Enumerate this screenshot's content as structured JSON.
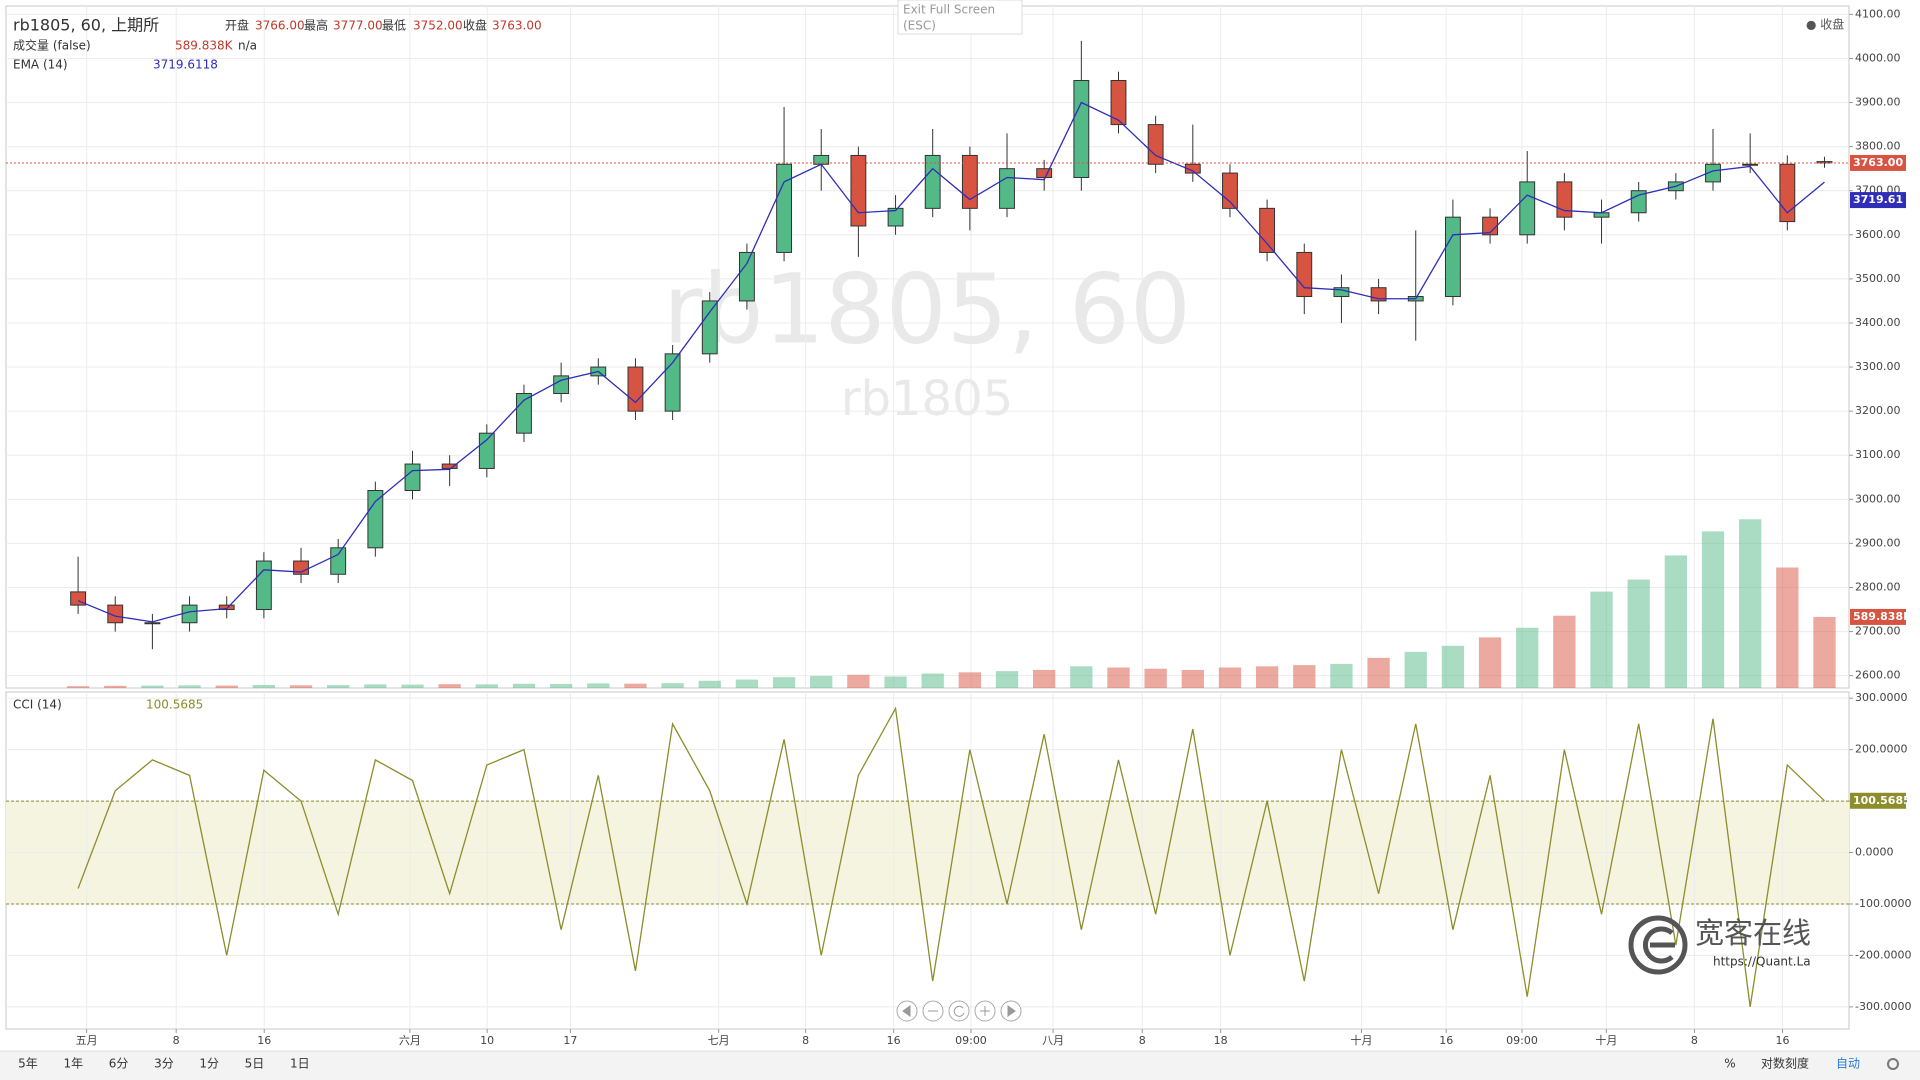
{
  "chart_data": [
    {
      "type": "candlestick",
      "title": "rb1805, 60, 上期所",
      "watermark": "rb1805, 60",
      "watermark_sub": "rb1805",
      "x": [
        0,
        1,
        2,
        3,
        4,
        5,
        6,
        7,
        8,
        9,
        10,
        11,
        12,
        13,
        14,
        15,
        16,
        17,
        18,
        19,
        20,
        21,
        22,
        23,
        24,
        25,
        26,
        27,
        28,
        29,
        30,
        31,
        32,
        33,
        34,
        35,
        36,
        37,
        38,
        39,
        40,
        41,
        42,
        43,
        44,
        45,
        46,
        47
      ],
      "xlim": [
        -1.94,
        47.66
      ],
      "open": [
        2790,
        2760,
        2720,
        2720,
        2760,
        2750,
        2860,
        2830,
        2890,
        3020,
        3080,
        3070,
        3150,
        3240,
        3280,
        3300,
        3200,
        3330,
        3450,
        3560,
        3760,
        3780,
        3620,
        3660,
        3780,
        3660,
        3750,
        3730,
        3950,
        3850,
        3760,
        3740,
        3660,
        3560,
        3460,
        3480,
        3450,
        3460,
        3640,
        3600,
        3720,
        3640,
        3650,
        3700,
        3720,
        3760,
        3760,
        3766
      ],
      "high": [
        2870,
        2780,
        2740,
        2780,
        2780,
        2880,
        2890,
        2910,
        3040,
        3110,
        3100,
        3170,
        3260,
        3310,
        3320,
        3320,
        3350,
        3470,
        3580,
        3890,
        3840,
        3800,
        3690,
        3840,
        3800,
        3830,
        3770,
        4040,
        3970,
        3870,
        3850,
        3760,
        3680,
        3580,
        3510,
        3500,
        3610,
        3680,
        3660,
        3790,
        3740,
        3680,
        3720,
        3740,
        3840,
        3830,
        3780,
        3777
      ],
      "low": [
        2740,
        2700,
        2660,
        2700,
        2730,
        2730,
        2810,
        2810,
        2870,
        3000,
        3030,
        3050,
        3130,
        3220,
        3260,
        3180,
        3180,
        3310,
        3430,
        3540,
        3700,
        3550,
        3600,
        3640,
        3610,
        3640,
        3700,
        3700,
        3830,
        3740,
        3720,
        3640,
        3540,
        3420,
        3400,
        3420,
        3360,
        3440,
        3580,
        3580,
        3610,
        3580,
        3630,
        3680,
        3700,
        3740,
        3610,
        3752
      ],
      "close": [
        2760,
        2720,
        2720,
        2760,
        2750,
        2860,
        2830,
        2890,
        3020,
        3080,
        3070,
        3150,
        3240,
        3280,
        3300,
        3200,
        3330,
        3450,
        3560,
        3760,
        3780,
        3620,
        3660,
        3780,
        3660,
        3750,
        3730,
        3950,
        3850,
        3760,
        3740,
        3660,
        3560,
        3460,
        3480,
        3450,
        3460,
        3640,
        3600,
        3720,
        3640,
        3650,
        3700,
        3720,
        3760,
        3760,
        3630,
        3763
      ],
      "up_color": "#53b987",
      "down_color": "#d75442",
      "ylim": [
        2572,
        4119
      ],
      "yticks": [
        {
          "value": 2600,
          "label": "2600.00"
        },
        {
          "value": 2700,
          "label": "2700.00"
        },
        {
          "value": 2800,
          "label": "2800.00"
        },
        {
          "value": 2900,
          "label": "2900.00"
        },
        {
          "value": 3000,
          "label": "3000.00"
        },
        {
          "value": 3100,
          "label": "3100.00"
        },
        {
          "value": 3200,
          "label": "3200.00"
        },
        {
          "value": 3300,
          "label": "3300.00"
        },
        {
          "value": 3400,
          "label": "3400.00"
        },
        {
          "value": 3500,
          "label": "3500.00"
        },
        {
          "value": 3600,
          "label": "3600.00"
        },
        {
          "value": 3700,
          "label": "3700.00"
        },
        {
          "value": 3800,
          "label": "3800.00"
        },
        {
          "value": 3900,
          "label": "3900.00"
        },
        {
          "value": 4000,
          "label": "4000.00"
        },
        {
          "value": 4100,
          "label": "4100.00"
        }
      ],
      "grid": true,
      "series": [
        {
          "name": "EMA (14)",
          "color": "#2e2eb8",
          "values": [
            2770,
            2735,
            2722,
            2745,
            2752,
            2840,
            2835,
            2875,
            2995,
            3065,
            3068,
            3135,
            3225,
            3270,
            3290,
            3220,
            3310,
            3425,
            3535,
            3720,
            3760,
            3650,
            3655,
            3750,
            3680,
            3730,
            3725,
            3900,
            3860,
            3780,
            3745,
            3675,
            3580,
            3480,
            3475,
            3455,
            3455,
            3600,
            3605,
            3690,
            3655,
            3650,
            3690,
            3710,
            3745,
            3755,
            3650,
            3719.6118
          ]
        }
      ],
      "volume": {
        "name": "成交量 (false)",
        "ylim": [
          0,
          5660000
        ],
        "values": [
          15000,
          18000,
          20000,
          22000,
          20000,
          25000,
          22000,
          24000,
          30000,
          28000,
          32000,
          30000,
          35000,
          33000,
          38000,
          36000,
          40000,
          60000,
          70000,
          90000,
          100000,
          110000,
          95000,
          120000,
          130000,
          140000,
          150000,
          180000,
          170000,
          160000,
          150000,
          170000,
          180000,
          190000,
          200000,
          250000,
          300000,
          350000,
          420000,
          500000,
          600000,
          800000,
          900000,
          1100000,
          1300000,
          1400000,
          1000000,
          589838
        ]
      },
      "last_price": {
        "value": 3763,
        "label": "3763.00"
      },
      "ema_last": {
        "value": 3719.61,
        "label": "3719.61"
      },
      "volume_last": {
        "value": 589838,
        "label": "589.838K"
      }
    },
    {
      "type": "line",
      "x": [
        0,
        1,
        2,
        3,
        4,
        5,
        6,
        7,
        8,
        9,
        10,
        11,
        12,
        13,
        14,
        15,
        16,
        17,
        18,
        19,
        20,
        21,
        22,
        23,
        24,
        25,
        26,
        27,
        28,
        29,
        30,
        31,
        32,
        33,
        34,
        35,
        36,
        37,
        38,
        39,
        40,
        41,
        42,
        43,
        44,
        45,
        46,
        47
      ],
      "xlim": [
        -1.94,
        47.66
      ],
      "xticks": [
        {
          "value": 0.23,
          "label": "五月"
        },
        {
          "value": 2.64,
          "label": "8"
        },
        {
          "value": 5.01,
          "label": "16"
        },
        {
          "value": 8.93,
          "label": "六月"
        },
        {
          "value": 11.01,
          "label": "10"
        },
        {
          "value": 13.25,
          "label": "17"
        },
        {
          "value": 17.24,
          "label": "七月"
        },
        {
          "value": 19.58,
          "label": "8"
        },
        {
          "value": 21.95,
          "label": "16"
        },
        {
          "value": 24.03,
          "label": "09:00"
        },
        {
          "value": 26.24,
          "label": "八月"
        },
        {
          "value": 28.64,
          "label": "8"
        },
        {
          "value": 30.75,
          "label": "18"
        },
        {
          "value": 34.54,
          "label": "十月"
        },
        {
          "value": 36.82,
          "label": "16"
        },
        {
          "value": 38.86,
          "label": "09:00"
        },
        {
          "value": 41.13,
          "label": "十月"
        },
        {
          "value": 43.5,
          "label": "8"
        },
        {
          "value": 45.87,
          "label": "16"
        }
      ],
      "ylim": [
        -343,
        312
      ],
      "yticks": [
        {
          "value": -300,
          "label": "-300.0000"
        },
        {
          "value": -200,
          "label": "-200.0000"
        },
        {
          "value": -100,
          "label": "-100.0000"
        },
        {
          "value": 0,
          "label": "0.0000"
        },
        {
          "value": 100,
          "label": "100.0000"
        },
        {
          "value": 200,
          "label": "200.0000"
        },
        {
          "value": 300,
          "label": "300.0000"
        }
      ],
      "grid": true,
      "bands": [
        100,
        -100
      ],
      "band_color": "#f4f4e1",
      "series": [
        {
          "name": "CCI (14)",
          "color": "#8d8d2b",
          "values": [
            -70,
            120,
            180,
            150,
            -200,
            160,
            100,
            -120,
            180,
            140,
            -80,
            170,
            200,
            -150,
            150,
            -230,
            250,
            120,
            -100,
            220,
            -200,
            150,
            280,
            -250,
            200,
            -100,
            230,
            -150,
            180,
            -120,
            240,
            -200,
            100,
            -250,
            200,
            -80,
            250,
            -150,
            150,
            -280,
            200,
            -120,
            250,
            -180,
            260,
            -300,
            170,
            100.5685
          ]
        }
      ],
      "last": {
        "value": 100.5685,
        "label": "100.5685"
      }
    }
  ],
  "legend": {
    "open_label": "开盘",
    "open": "3766.00",
    "high_label": "最高",
    "high": "3777.00",
    "low_label": "最低",
    "low": "3752.00",
    "close_label": "收盘",
    "volume_extra": "n/a"
  },
  "ui": {
    "exit_full_screen": "Exit Full Screen",
    "exit_key": "(ESC)",
    "close_legend": "● 收盘",
    "intervals": [
      "5年",
      "1年",
      "6分",
      "3分",
      "1分",
      "5日",
      "1日"
    ],
    "percent": "%",
    "log_scale": "对数刻度",
    "auto": "自动",
    "logo": "宽客在线",
    "logo_url": "https://Quant.La"
  }
}
